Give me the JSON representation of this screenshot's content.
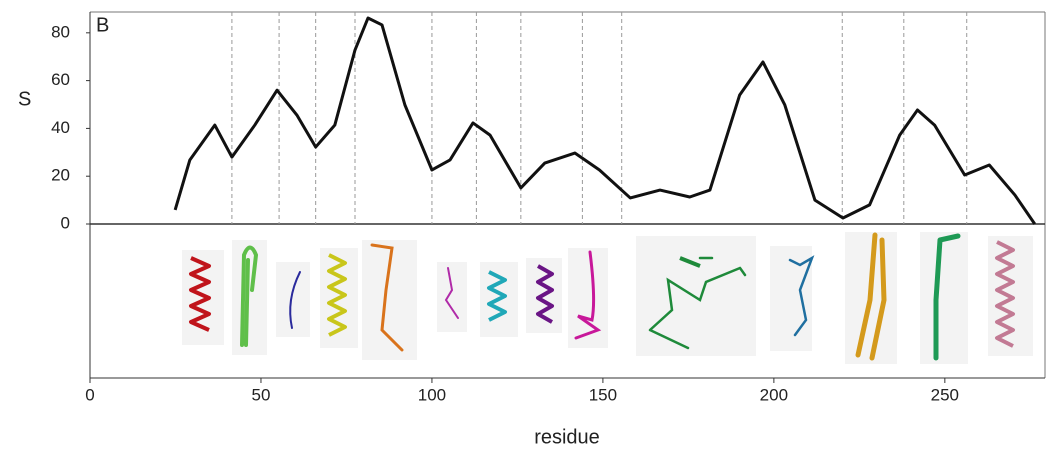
{
  "chart_data": {
    "type": "line",
    "panel_label": "B",
    "y_label": "S",
    "x_label": "residue",
    "xlim": [
      0,
      279
    ],
    "xticks": [
      0,
      50,
      100,
      150,
      200,
      250
    ],
    "ylim": [
      0,
      88
    ],
    "yticks": [
      0,
      20,
      40,
      60,
      80
    ],
    "segment_boundaries": [
      41.5,
      55.3,
      66,
      77.5,
      100,
      113,
      126,
      144,
      155.5,
      220,
      238,
      256.4
    ],
    "series": [
      {
        "color": "#111111",
        "x": [
          24.9,
          29.2,
          36.5,
          41.5,
          48.2,
          54.7,
          60.5,
          66,
          71.6,
          77.5,
          81.3,
          85.4,
          92.1,
          100,
          105.3,
          112,
          117,
          126,
          133,
          141.8,
          149,
          158,
          166.7,
          175.4,
          181.3,
          190,
          196.8,
          203.2,
          212,
          220.2,
          228,
          236.8,
          242,
          247,
          255.8,
          263,
          270.5,
          276.3
        ],
        "values": [
          5.9,
          26.8,
          41.4,
          28,
          41.4,
          56,
          45.6,
          32.2,
          41.4,
          72.8,
          86.2,
          83.3,
          49.8,
          22.6,
          26.8,
          42.3,
          37.2,
          15.1,
          25.5,
          29.7,
          22.6,
          10.9,
          14.2,
          11.3,
          14.2,
          54,
          67.8,
          49.8,
          10,
          2.5,
          8,
          37.2,
          47.7,
          41.4,
          20.5,
          24.7,
          12.1,
          0
        ]
      }
    ]
  }
}
